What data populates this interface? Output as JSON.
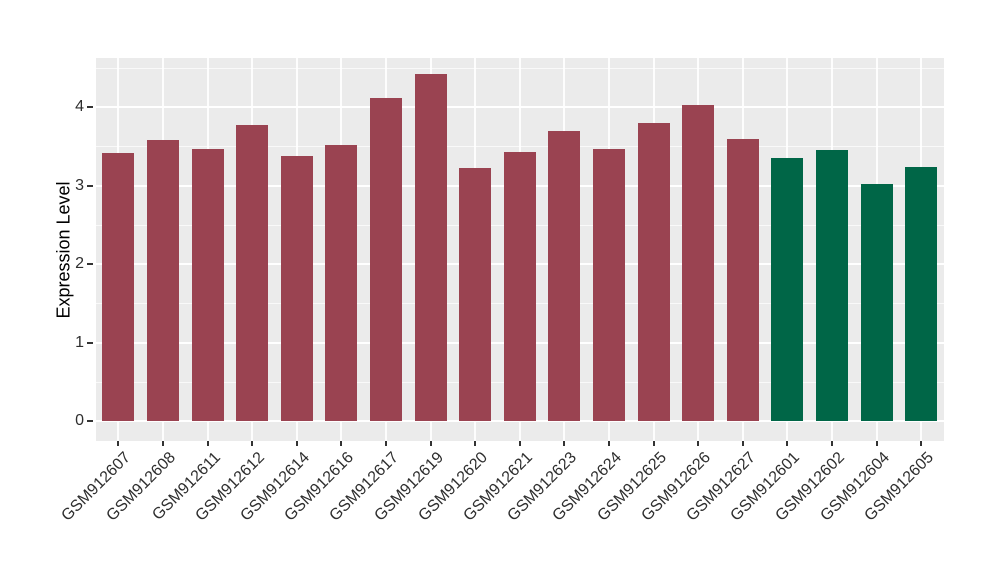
{
  "figure": {
    "background": "#ffffff",
    "panel_background": "#EBEBEB",
    "gridline_color": "#FFFFFF"
  },
  "chart_data": {
    "type": "bar",
    "title": "",
    "xlabel": "",
    "ylabel": "Expression Level",
    "categories": [
      "GSM912607",
      "GSM912608",
      "GSM912611",
      "GSM912612",
      "GSM912614",
      "GSM912616",
      "GSM912617",
      "GSM912619",
      "GSM912620",
      "GSM912621",
      "GSM912623",
      "GSM912624",
      "GSM912625",
      "GSM912626",
      "GSM912627",
      "GSM912601",
      "GSM912602",
      "GSM912604",
      "GSM912605"
    ],
    "values": [
      3.42,
      3.58,
      3.47,
      3.77,
      3.38,
      3.51,
      4.12,
      4.42,
      3.22,
      3.43,
      3.69,
      3.46,
      3.8,
      4.03,
      3.59,
      3.35,
      3.45,
      3.02,
      3.24
    ],
    "bar_colors": [
      "#9A4351",
      "#9A4351",
      "#9A4351",
      "#9A4351",
      "#9A4351",
      "#9A4351",
      "#9A4351",
      "#9A4351",
      "#9A4351",
      "#9A4351",
      "#9A4351",
      "#9A4351",
      "#9A4351",
      "#9A4351",
      "#9A4351",
      "#006647",
      "#006647",
      "#006647",
      "#006647"
    ],
    "color_groups": {
      "maroon": "#9A4351",
      "green": "#006647"
    },
    "yticks": [
      0,
      1,
      2,
      3,
      4
    ],
    "ytick_labels": [
      "0",
      "1",
      "2",
      "3",
      "4"
    ],
    "ylim": [
      0,
      4.65
    ],
    "grid": true,
    "legend_position": "none"
  }
}
